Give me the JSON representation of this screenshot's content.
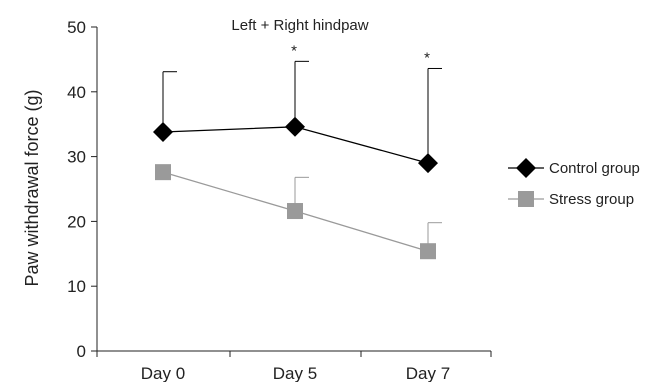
{
  "chart_data": {
    "type": "line",
    "title": "Left + Right hindpaw",
    "ylabel": "Paw withdrawal force (g)",
    "xlabel": "",
    "ylim": [
      0,
      50
    ],
    "yticks": [
      0,
      10,
      20,
      30,
      40,
      50
    ],
    "categories": [
      "Day 0",
      "Day 5",
      "Day 7"
    ],
    "grid": false,
    "legend_position": "right",
    "significance": [
      "",
      "*",
      "*"
    ],
    "series": [
      {
        "name": "Control group",
        "marker": "diamond",
        "color": "#000000",
        "values": [
          33.8,
          34.6,
          29.0
        ],
        "error_upper": [
          43.1,
          44.7,
          43.6
        ]
      },
      {
        "name": "Stress group",
        "marker": "square",
        "color": "#9a9a9a",
        "values": [
          27.6,
          21.6,
          15.4
        ],
        "error_upper": [
          27.6,
          26.8,
          19.8
        ]
      }
    ]
  }
}
